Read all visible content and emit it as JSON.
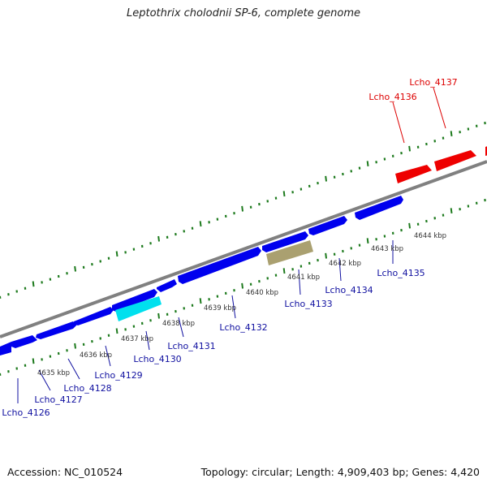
{
  "title": "Leptothrix cholodnii SP-6, complete genome",
  "footer": {
    "accession": "Accession: NC_010524",
    "summary": "Topology: circular; Length: 4,909,403 bp; Genes: 4,420"
  },
  "colors": {
    "backbone": "#808080",
    "tick": "#1d7a1d",
    "forward_gene": "#ee0000",
    "reverse_gene": "#0000ee",
    "highlight_cyan": "#00e0ee",
    "highlight_khaki": "#aaa070",
    "forward_label": "#dd0000",
    "reverse_label": "#1010a0",
    "kbp_label": "#333333"
  },
  "kbp_labels": [
    "4635 kbp",
    "4636 kbp",
    "4637 kbp",
    "4638 kbp",
    "4639 kbp",
    "4640 kbp",
    "4641 kbp",
    "4642 kbp",
    "4643 kbp",
    "4644 kbp"
  ],
  "forward_genes": [
    {
      "label": "Lcho_4136"
    },
    {
      "label": "Lcho_4137"
    }
  ],
  "reverse_genes": [
    {
      "label": "Lcho_4126"
    },
    {
      "label": "Lcho_4127"
    },
    {
      "label": "Lcho_4128"
    },
    {
      "label": "Lcho_4129"
    },
    {
      "label": "Lcho_4130"
    },
    {
      "label": "Lcho_4131"
    },
    {
      "label": "Lcho_4132"
    },
    {
      "label": "Lcho_4133"
    },
    {
      "label": "Lcho_4134"
    },
    {
      "label": "Lcho_4135"
    }
  ]
}
